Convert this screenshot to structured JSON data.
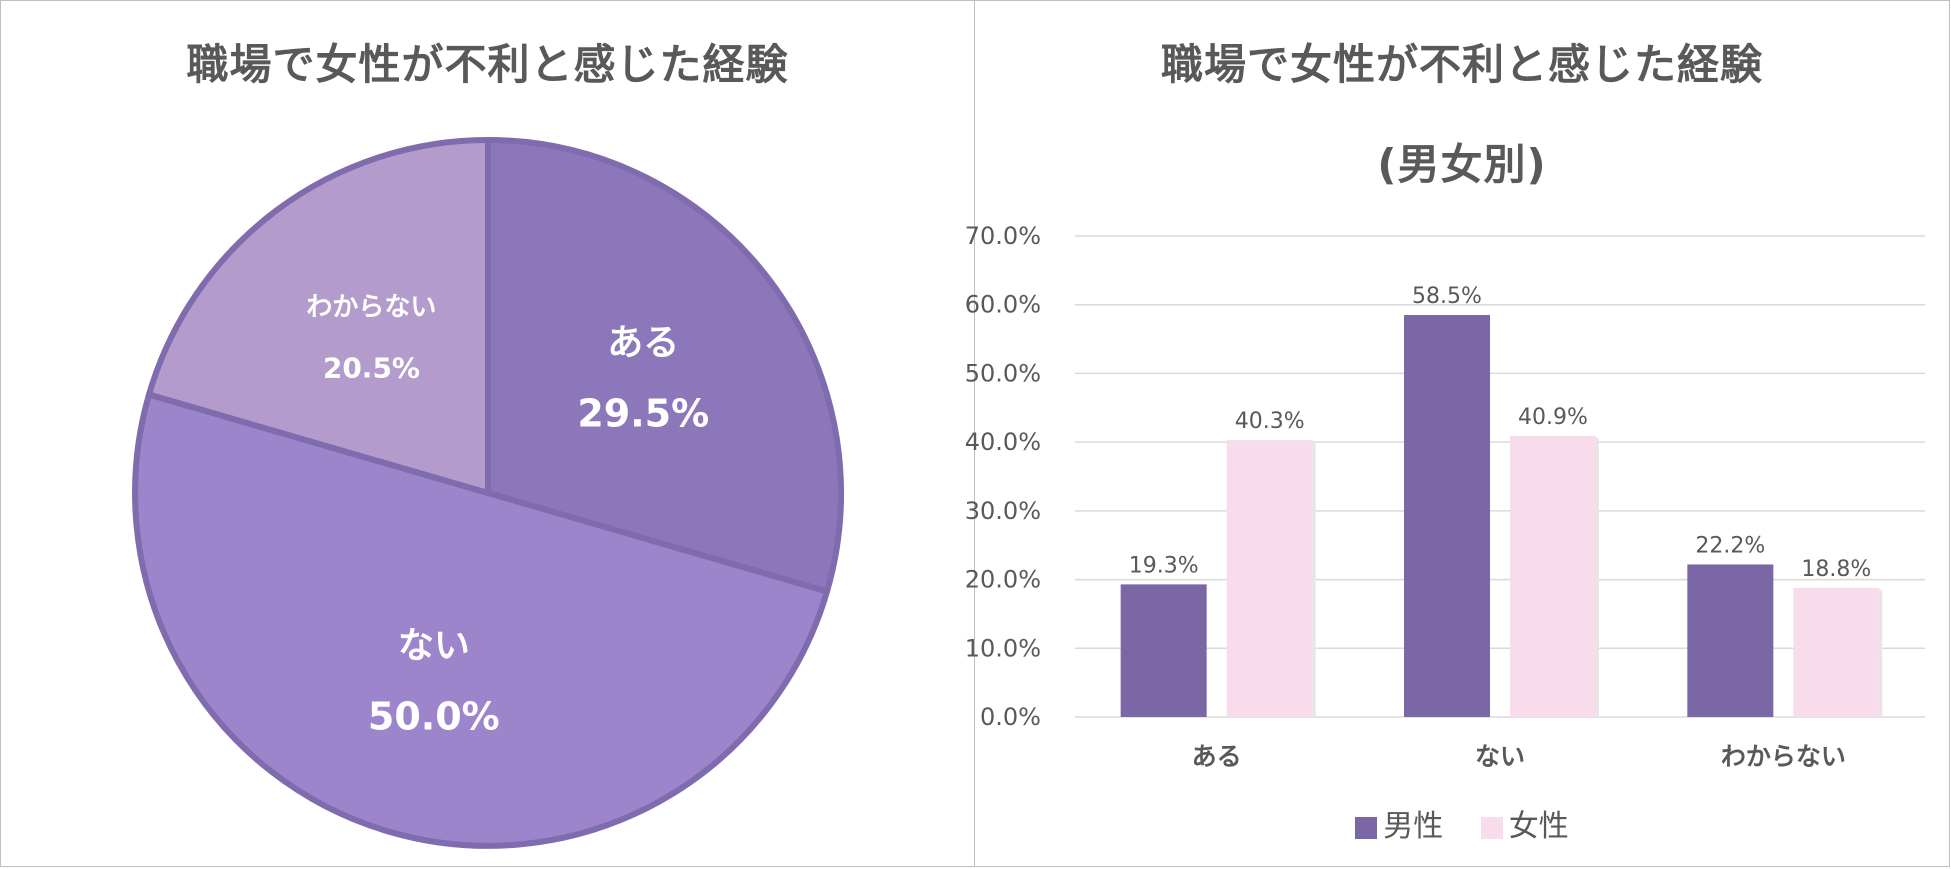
{
  "left_chart": {
    "title": "職場で女性が不利と感じた経験"
  },
  "right_chart": {
    "title_line1": "職場で女性が不利と感じた経験",
    "title_line2": "(男女別)"
  },
  "colors": {
    "pie": [
      "#8b77ba",
      "#9d85cc",
      "#b39ccc"
    ],
    "pie_border": "#7f6bad",
    "male": "#7b66a6",
    "female": "#f8dcec",
    "grid": "#d9d9d9",
    "text": "#595959"
  },
  "chart_data": [
    {
      "type": "pie",
      "title": "職場で女性が不利と感じた経験",
      "slices": [
        {
          "label": "ある",
          "value": 29.5,
          "display": "29.5%"
        },
        {
          "label": "ない",
          "value": 50.0,
          "display": "50.0%"
        },
        {
          "label": "わからない",
          "value": 20.5,
          "display": "20.5%"
        }
      ]
    },
    {
      "type": "bar",
      "title": "職場で女性が不利と感じた経験 (男女別)",
      "categories": [
        "ある",
        "ない",
        "わからない"
      ],
      "series": [
        {
          "name": "男性",
          "values": [
            19.3,
            58.5,
            22.2
          ],
          "labels": [
            "19.3%",
            "58.5%",
            "22.2%"
          ]
        },
        {
          "name": "女性",
          "values": [
            40.3,
            40.9,
            18.8
          ],
          "labels": [
            "40.3%",
            "40.9%",
            "18.8%"
          ]
        }
      ],
      "ylim": [
        0,
        70
      ],
      "yticks": [
        "0.0%",
        "10.0%",
        "20.0%",
        "30.0%",
        "40.0%",
        "50.0%",
        "60.0%",
        "70.0%"
      ],
      "legend": "bottom",
      "grid": true
    }
  ]
}
